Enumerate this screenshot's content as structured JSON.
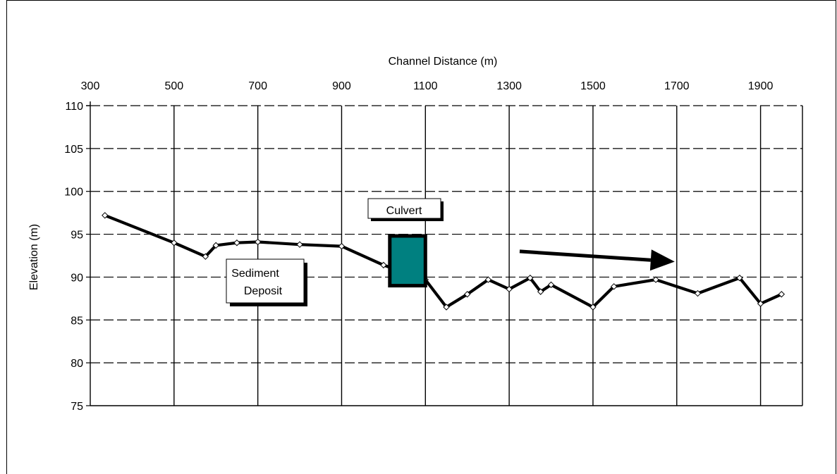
{
  "chart_data": {
    "type": "line",
    "title": "",
    "xlabel": "Channel Distance (m)",
    "ylabel": "Elevation (m)",
    "xlim": [
      300,
      2000
    ],
    "ylim": [
      75,
      110
    ],
    "x_ticks": [
      300,
      500,
      700,
      900,
      1100,
      1300,
      1500,
      1700,
      1900
    ],
    "y_ticks": [
      110,
      105,
      100,
      95,
      90,
      85,
      80,
      75
    ],
    "x_tick_labels": [
      "300",
      "500",
      "700",
      "900",
      "1100",
      "1300",
      "1500",
      "1700",
      "1900"
    ],
    "y_tick_labels": [
      "110",
      "105",
      "100",
      "95",
      "90",
      "85",
      "80",
      "75"
    ],
    "grid": true,
    "x_axis_position": "top",
    "series": [
      {
        "points": [
          {
            "x": 335,
            "y": 97.2
          },
          {
            "x": 500,
            "y": 94.0
          },
          {
            "x": 575,
            "y": 92.4
          },
          {
            "x": 600,
            "y": 93.7
          },
          {
            "x": 650,
            "y": 94.0
          },
          {
            "x": 700,
            "y": 94.1
          },
          {
            "x": 800,
            "y": 93.8
          },
          {
            "x": 900,
            "y": 93.6
          },
          {
            "x": 1000,
            "y": 91.4
          },
          {
            "x": 1100,
            "y": 89.7
          },
          {
            "x": 1150,
            "y": 86.5
          },
          {
            "x": 1200,
            "y": 88.0
          },
          {
            "x": 1250,
            "y": 89.7
          },
          {
            "x": 1300,
            "y": 88.6
          },
          {
            "x": 1350,
            "y": 89.9
          },
          {
            "x": 1375,
            "y": 88.3
          },
          {
            "x": 1400,
            "y": 89.1
          },
          {
            "x": 1500,
            "y": 86.5
          },
          {
            "x": 1550,
            "y": 88.9
          },
          {
            "x": 1650,
            "y": 89.7
          },
          {
            "x": 1750,
            "y": 88.1
          },
          {
            "x": 1850,
            "y": 89.9
          },
          {
            "x": 1900,
            "y": 86.9
          },
          {
            "x": 1950,
            "y": 88.0
          }
        ]
      }
    ],
    "annotations": [
      {
        "text": "Culvert"
      },
      {
        "text_lines": [
          "Sediment",
          "Deposit"
        ]
      }
    ],
    "culvert_box": {
      "x_range": [
        1015,
        1100
      ],
      "y_range": [
        89.0,
        94.8
      ],
      "fill": "#008080"
    },
    "flow_arrow": {
      "from": {
        "x": 1325,
        "y": 93.0
      },
      "to": {
        "x": 1695,
        "y": 91.8
      }
    },
    "colors": {
      "line": "#000000",
      "culvert_fill": "#008080",
      "background": "#ffffff"
    }
  }
}
